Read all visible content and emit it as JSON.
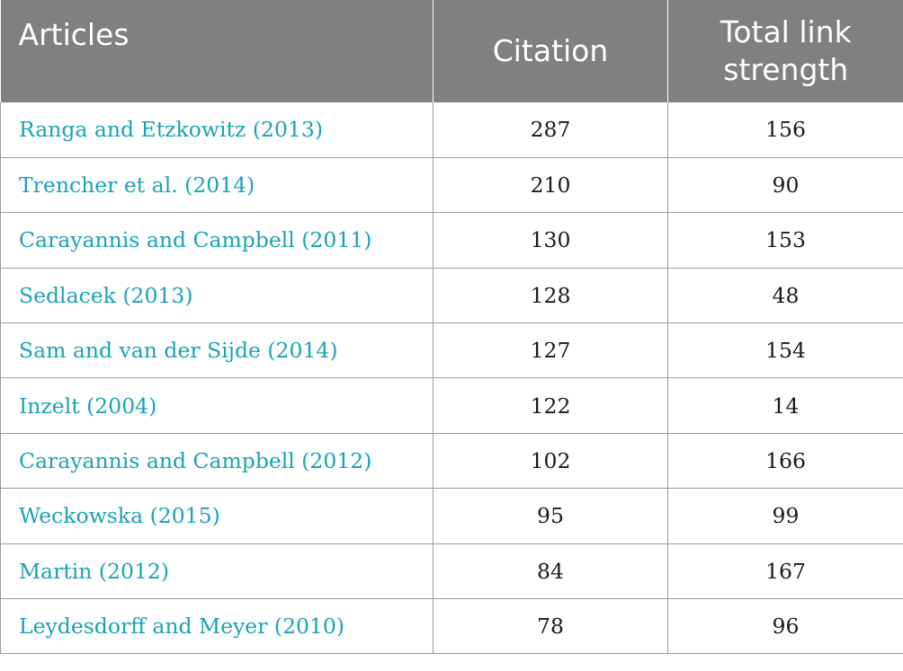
{
  "table": {
    "headers": [
      "Articles",
      "Citation",
      "Total link strength"
    ],
    "rows": [
      {
        "article": "Ranga and Etzkowitz (2013)",
        "citation": "287",
        "tls": "156"
      },
      {
        "article": "Trencher et al. (2014)",
        "citation": "210",
        "tls": "90"
      },
      {
        "article": "Carayannis and Campbell (2011)",
        "citation": "130",
        "tls": "153"
      },
      {
        "article": "Sedlacek (2013)",
        "citation": "128",
        "tls": "48"
      },
      {
        "article": "Sam and van der Sijde (2014)",
        "citation": "127",
        "tls": "154"
      },
      {
        "article": "Inzelt (2004)",
        "citation": "122",
        "tls": "14"
      },
      {
        "article": "Carayannis and Campbell (2012)",
        "citation": "102",
        "tls": "166"
      },
      {
        "article": "Weckowska (2015)",
        "citation": "95",
        "tls": "99"
      },
      {
        "article": "Martin (2012)",
        "citation": "84",
        "tls": "167"
      },
      {
        "article": "Leydesdorff and Meyer (2010)",
        "citation": "78",
        "tls": "96"
      }
    ]
  },
  "colors": {
    "header_bg": "#808080",
    "header_text": "#ffffff",
    "link_text": "#1aa3b4",
    "border": "#9c9c9c"
  }
}
